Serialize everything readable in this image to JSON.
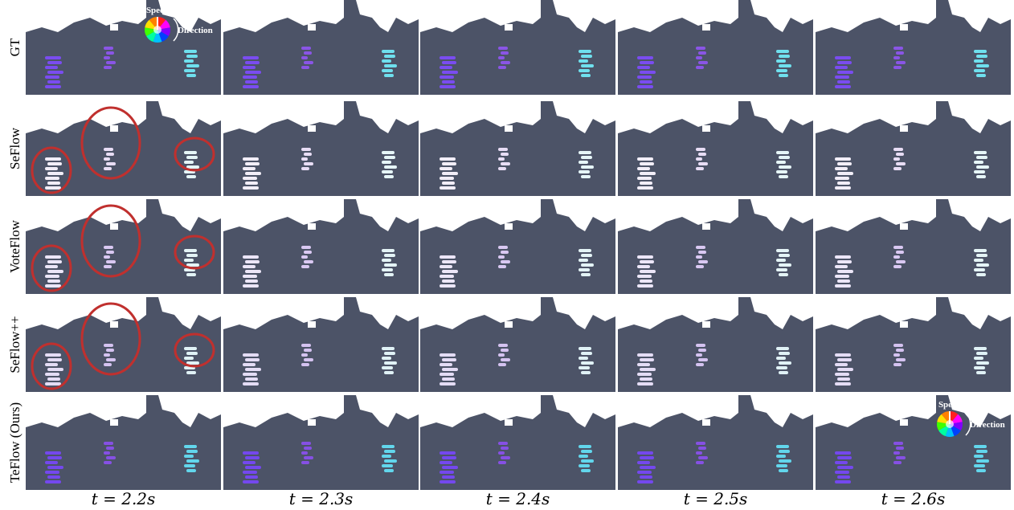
{
  "row_labels": [
    "GT",
    "SeFlow",
    "VoteFlow",
    "SeFlow++",
    "TeFlow (Ours)"
  ],
  "column_labels": [
    "t = 2.2s",
    "t = 2.3s",
    "t = 2.4s",
    "t = 2.5s",
    "t = 2.6s"
  ],
  "legend": {
    "speed": "Speed",
    "direction": "Direction"
  }
}
